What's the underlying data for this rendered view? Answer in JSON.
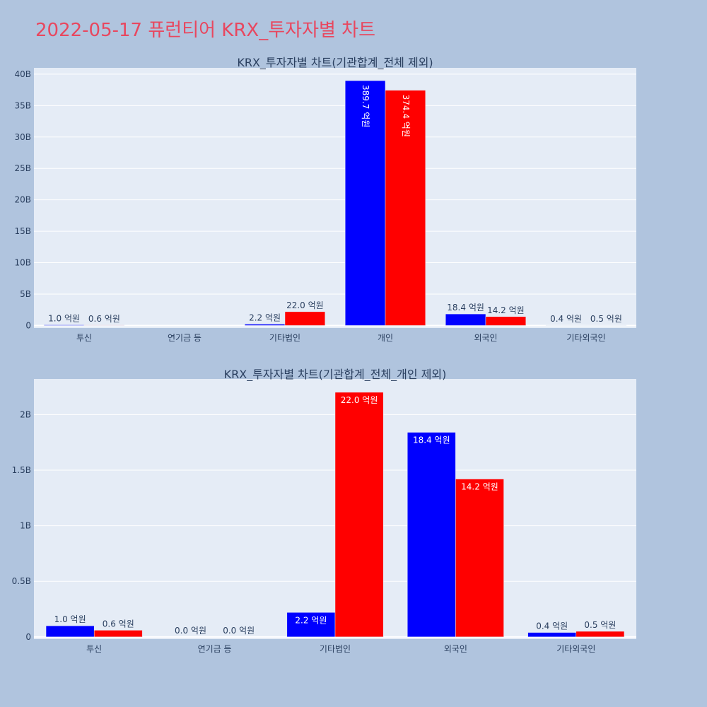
{
  "page_title": "2022-05-17 퓨런티어 KRX_투자자별 차트",
  "colors": {
    "buy": "#0000ff",
    "sell": "#ff0000",
    "title": "#e8475f",
    "plot_bg": "#e5ecf6",
    "paper_bg": "#b0c4de",
    "text": "#2a3f5f"
  },
  "chart_data": [
    {
      "type": "bar",
      "title": "KRX_투자자별 차트(기관합계_전체 제외)",
      "categories": [
        "투신",
        "연기금 등",
        "기타법인",
        "개인",
        "외국인",
        "기타외국인"
      ],
      "series": [
        {
          "values": [
            0.1,
            0,
            0.22,
            38.97,
            1.84,
            0.04
          ],
          "labels": [
            "1.0 억원",
            "",
            "2.2 억원",
            "389.7 억원",
            "18.4 억원",
            "0.4 억원"
          ]
        },
        {
          "values": [
            0.06,
            0,
            2.2,
            37.44,
            1.42,
            0.05
          ],
          "labels": [
            "0.6 억원",
            "",
            "22.0 억원",
            "374.4 억원",
            "14.2 억원",
            "0.5 억원"
          ]
        }
      ],
      "yticks": [
        0,
        5,
        10,
        15,
        20,
        25,
        30,
        35,
        40
      ],
      "ytick_labels": [
        "0",
        "5B",
        "10B",
        "15B",
        "20B",
        "25B",
        "30B",
        "35B",
        "40B"
      ],
      "ylim": [
        -0.4,
        41
      ],
      "grid": true
    },
    {
      "type": "bar",
      "title": "KRX_투자자별 차트(기관합계_전체_개인 제외)",
      "categories": [
        "투신",
        "연기금 등",
        "기타법인",
        "외국인",
        "기타외국인"
      ],
      "series": [
        {
          "values": [
            0.1,
            0,
            0.22,
            1.84,
            0.04
          ],
          "labels": [
            "1.0 억원",
            "0.0 억원",
            "2.2 억원",
            "18.4 억원",
            "0.4 억원"
          ]
        },
        {
          "values": [
            0.06,
            0,
            2.2,
            1.42,
            0.05
          ],
          "labels": [
            "0.6 억원",
            "0.0 억원",
            "22.0 억원",
            "14.2 억원",
            "0.5 억원"
          ]
        }
      ],
      "yticks": [
        0,
        0.5,
        1,
        1.5,
        2
      ],
      "ytick_labels": [
        "0",
        "0.5B",
        "1B",
        "1.5B",
        "2B"
      ],
      "ylim": [
        -0.02,
        2.32
      ],
      "grid": true
    }
  ]
}
